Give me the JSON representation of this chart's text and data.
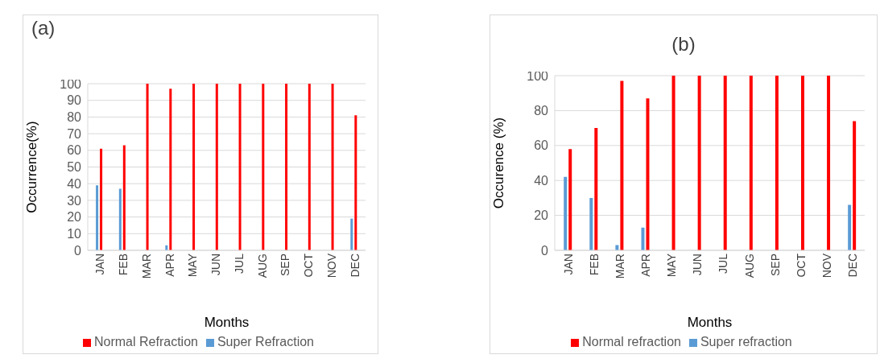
{
  "chart_data": [
    {
      "type": "bar",
      "title": "(a)",
      "xlabel": "Months",
      "ylabel": "Occurrence(%)",
      "categories": [
        "JAN",
        "FEB",
        "MAR",
        "APR",
        "MAY",
        "JUN",
        "JUL",
        "AUG",
        "SEP",
        "OCT",
        "NOV",
        "DEC"
      ],
      "series": [
        {
          "name": "Super Refraction",
          "color": "#5b9bd5",
          "values": [
            39,
            37,
            0,
            3,
            0,
            0,
            0,
            0,
            0,
            0,
            0,
            19
          ]
        },
        {
          "name": "Normal Refraction",
          "color": "#ff0000",
          "values": [
            61,
            63,
            100,
            97,
            100,
            100,
            100,
            100,
            100,
            100,
            100,
            81
          ]
        }
      ],
      "ylim": [
        0,
        100
      ],
      "yticks": [
        0,
        10,
        20,
        30,
        40,
        50,
        60,
        70,
        80,
        90,
        100
      ],
      "grid": "y",
      "legend": "bottom"
    },
    {
      "type": "bar",
      "title": "(b)",
      "xlabel": "Months",
      "ylabel": "Occurence (%)",
      "categories": [
        "JAN",
        "FEB",
        "MAR",
        "APR",
        "MAY",
        "JUN",
        "JUL",
        "AUG",
        "SEP",
        "OCT",
        "NOV",
        "DEC"
      ],
      "series": [
        {
          "name": "Super refraction",
          "color": "#5b9bd5",
          "values": [
            42,
            30,
            3,
            13,
            0,
            0,
            0,
            0,
            0,
            0,
            0,
            26
          ]
        },
        {
          "name": "Normal refraction",
          "color": "#ff0000",
          "values": [
            58,
            70,
            97,
            87,
            100,
            100,
            100,
            100,
            100,
            100,
            100,
            74
          ]
        }
      ],
      "ylim": [
        0,
        100
      ],
      "yticks": [
        0,
        20,
        40,
        60,
        80,
        100
      ],
      "grid": "y",
      "legend": "bottom"
    }
  ]
}
